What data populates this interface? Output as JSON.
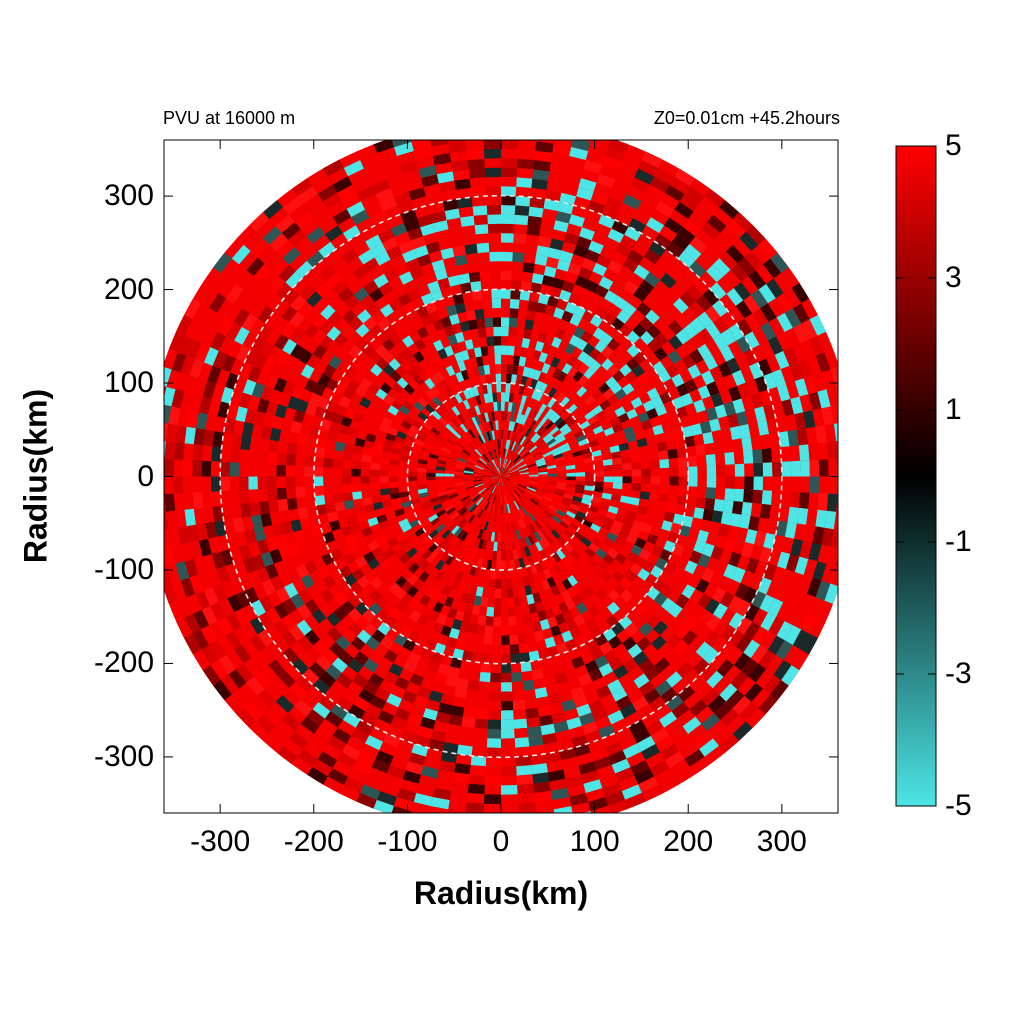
{
  "header": {
    "left_title": "PVU at 16000 m",
    "right_title": "Z0=0.01cm  +45.2hours"
  },
  "chart_data": {
    "type": "heatmap",
    "projection": "polar field on cartesian axes",
    "xlabel": "Radius(km)",
    "ylabel": "Radius(km)",
    "xlim": [
      -360,
      360
    ],
    "ylim": [
      -360,
      360
    ],
    "x_ticks": [
      "-300",
      "-200",
      "-100",
      "0",
      "100",
      "200",
      "300"
    ],
    "y_ticks": [
      "300",
      "200",
      "100",
      "0",
      "-100",
      "-200",
      "-300"
    ],
    "x_tick_values": [
      -300,
      -200,
      -100,
      0,
      100,
      200,
      300
    ],
    "y_tick_values": [
      300,
      200,
      100,
      0,
      -100,
      -200,
      -300
    ],
    "domain_radius_km": 380,
    "range_rings_km": [
      100,
      200,
      300
    ],
    "colorbar": {
      "min": -5,
      "max": 5,
      "tick_values": [
        5,
        3,
        1,
        -1,
        -3,
        -5
      ],
      "tick_labels": [
        "5",
        "3",
        "1",
        "-1",
        "-3",
        "-5"
      ],
      "colors": {
        "high": "#ff0000",
        "mid": "#000000",
        "low": "#4de5e5"
      }
    },
    "field_summary": "Mostly high positive PVU (red, about 5) with negative (cyan, about -5) spiral bands concentrated north and east of the center"
  }
}
